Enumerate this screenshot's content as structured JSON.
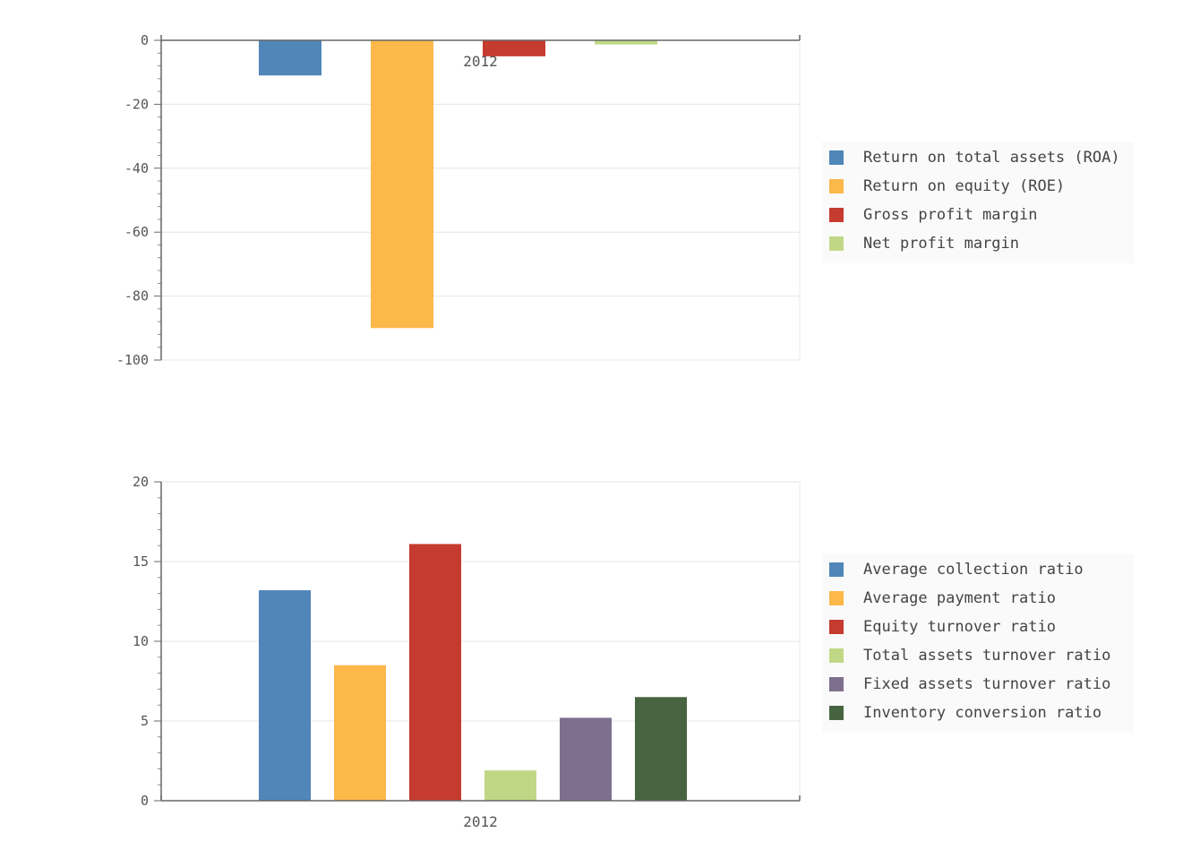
{
  "chart_data": [
    {
      "type": "bar",
      "title": "",
      "xlabel": "",
      "ylabel": "",
      "categories": [
        "2012"
      ],
      "ylim": [
        -100,
        0
      ],
      "yticks": [
        "0",
        "-20",
        "-40",
        "-60",
        "-80",
        "-100"
      ],
      "grid": true,
      "legend_position": "right",
      "series": [
        {
          "name": "Return on total assets (ROA)",
          "values": [
            -11
          ],
          "color": "#5086b8"
        },
        {
          "name": "Return on equity (ROE)",
          "values": [
            -90
          ],
          "color": "#fdb84a"
        },
        {
          "name": "Gross profit margin",
          "values": [
            -5
          ],
          "color": "#c63b2f"
        },
        {
          "name": "Net profit margin",
          "values": [
            -1.3
          ],
          "color": "#c0d886"
        }
      ]
    },
    {
      "type": "bar",
      "title": "",
      "xlabel": "",
      "ylabel": "",
      "categories": [
        "2012"
      ],
      "ylim": [
        0,
        20
      ],
      "yticks": [
        "20",
        "15",
        "10",
        "5",
        "0"
      ],
      "grid": true,
      "legend_position": "right",
      "series": [
        {
          "name": "Average collection ratio",
          "values": [
            13.2
          ],
          "color": "#5086b8"
        },
        {
          "name": "Average payment ratio",
          "values": [
            8.5
          ],
          "color": "#fdb84a"
        },
        {
          "name": "Equity turnover ratio",
          "values": [
            16.1
          ],
          "color": "#c63b2f"
        },
        {
          "name": "Total assets turnover ratio",
          "values": [
            1.9
          ],
          "color": "#c0d886"
        },
        {
          "name": "Fixed assets turnover ratio",
          "values": [
            5.2
          ],
          "color": "#7f6f8e"
        },
        {
          "name": "Inventory conversion ratio",
          "values": [
            6.5
          ],
          "color": "#476440"
        }
      ]
    }
  ]
}
